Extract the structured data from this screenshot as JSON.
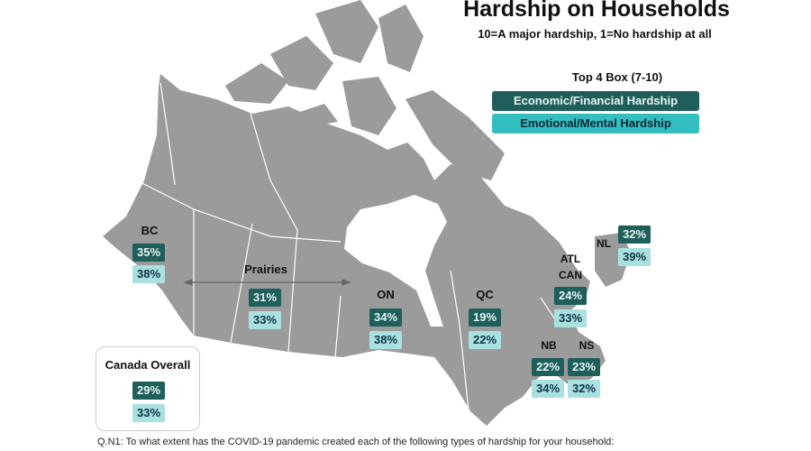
{
  "title": "Hardship on Households",
  "subtitle": "10=A major hardship, 1=No hardship at all",
  "legend": {
    "heading": "Top 4 Box (7-10)",
    "economic": "Economic/Financial Hardship",
    "emotional": "Emotional/Mental Hardship",
    "economic_color": "#1f5f5b",
    "emotional_color": "#33bfc0"
  },
  "regions": {
    "bc": {
      "label": "BC",
      "economic": "35%",
      "emotional": "38%"
    },
    "prairies": {
      "label": "Prairies",
      "economic": "31%",
      "emotional": "33%"
    },
    "on": {
      "label": "ON",
      "economic": "34%",
      "emotional": "38%"
    },
    "qc": {
      "label": "QC",
      "economic": "19%",
      "emotional": "22%"
    },
    "atl": {
      "label_line1": "ATL",
      "label_line2": "CAN",
      "economic": "24%",
      "emotional": "33%"
    },
    "nl": {
      "label": "NL",
      "economic": "32%",
      "emotional": "39%"
    },
    "nb": {
      "label": "NB",
      "economic": "22%",
      "emotional": "34%"
    },
    "ns": {
      "label": "NS",
      "economic": "23%",
      "emotional": "32%"
    }
  },
  "overall": {
    "label": "Canada Overall",
    "economic": "29%",
    "emotional": "33%"
  },
  "question": "Q.N1: To what extent has the COVID-19 pandemic created each of the following types of hardship for your household:",
  "map_color": "#9b9b9b"
}
